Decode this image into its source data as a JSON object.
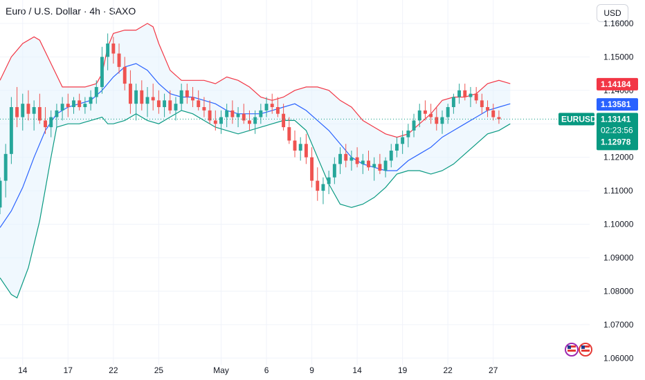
{
  "header": {
    "title": "Euro / U.S. Dollar · 4h · SAXO",
    "currency": "USD"
  },
  "colors": {
    "up": "#26a69a",
    "down": "#ef5350",
    "upper_band": "#f23645",
    "lower_band": "#089981",
    "basis": "#2962ff",
    "band_fill": "#e3f2fd"
  },
  "price_tags": {
    "upper": {
      "value": "1.14184",
      "color": "#f23645"
    },
    "basis": {
      "value": "1.13581",
      "color": "#2962ff"
    },
    "symbol": {
      "label": "EURUSD",
      "color": "#089981"
    },
    "last": {
      "value": "1.13141",
      "countdown": "02:23:56",
      "color": "#089981"
    },
    "lower": {
      "value": "1.12978",
      "color": "#089981"
    }
  },
  "chart_data": {
    "type": "line",
    "title": "Euro / U.S. Dollar · 4h · SAXO",
    "indicator": "Bollinger Bands",
    "x_ticks": [
      "14",
      "17",
      "22",
      "25",
      "May",
      "6",
      "9",
      "14",
      "19",
      "22",
      "27"
    ],
    "y_ticks": [
      "1.16000",
      "1.15000",
      "1.14000",
      "1.13000",
      "1.12000",
      "1.11000",
      "1.10000",
      "1.09000",
      "1.08000",
      "1.07000",
      "1.06000"
    ],
    "ylim": [
      1.058,
      1.167
    ],
    "xlim": [
      0,
      104
    ],
    "x_tick_positions": [
      4,
      12,
      20,
      28,
      39,
      47,
      55,
      63,
      71,
      79,
      87
    ],
    "upper_band": [
      [
        0,
        1.143
      ],
      [
        2,
        1.15
      ],
      [
        4,
        1.154
      ],
      [
        6,
        1.156
      ],
      [
        7,
        1.155
      ],
      [
        9,
        1.148
      ],
      [
        11,
        1.141
      ],
      [
        13,
        1.141
      ],
      [
        15,
        1.141
      ],
      [
        17,
        1.142
      ],
      [
        18,
        1.145
      ],
      [
        19,
        1.153
      ],
      [
        20,
        1.157
      ],
      [
        22,
        1.158
      ],
      [
        24,
        1.158
      ],
      [
        26,
        1.16
      ],
      [
        27,
        1.159
      ],
      [
        28,
        1.154
      ],
      [
        30,
        1.146
      ],
      [
        32,
        1.143
      ],
      [
        34,
        1.143
      ],
      [
        36,
        1.143
      ],
      [
        38,
        1.142
      ],
      [
        40,
        1.144
      ],
      [
        42,
        1.143
      ],
      [
        44,
        1.141
      ],
      [
        46,
        1.138
      ],
      [
        48,
        1.137
      ],
      [
        50,
        1.138
      ],
      [
        52,
        1.14
      ],
      [
        54,
        1.141
      ],
      [
        56,
        1.141
      ],
      [
        58,
        1.14
      ],
      [
        60,
        1.137
      ],
      [
        62,
        1.135
      ],
      [
        64,
        1.131
      ],
      [
        66,
        1.129
      ],
      [
        68,
        1.127
      ],
      [
        70,
        1.126
      ],
      [
        72,
        1.127
      ],
      [
        74,
        1.13
      ],
      [
        76,
        1.133
      ],
      [
        78,
        1.137
      ],
      [
        80,
        1.138
      ],
      [
        82,
        1.138
      ],
      [
        84,
        1.139
      ],
      [
        86,
        1.142
      ],
      [
        88,
        1.143
      ],
      [
        90,
        1.142
      ]
    ],
    "basis": [
      [
        0,
        1.099
      ],
      [
        2,
        1.104
      ],
      [
        4,
        1.111
      ],
      [
        6,
        1.12
      ],
      [
        8,
        1.128
      ],
      [
        10,
        1.133
      ],
      [
        12,
        1.135
      ],
      [
        14,
        1.136
      ],
      [
        16,
        1.137
      ],
      [
        18,
        1.14
      ],
      [
        20,
        1.144
      ],
      [
        22,
        1.147
      ],
      [
        24,
        1.148
      ],
      [
        26,
        1.146
      ],
      [
        28,
        1.142
      ],
      [
        30,
        1.139
      ],
      [
        32,
        1.138
      ],
      [
        34,
        1.138
      ],
      [
        36,
        1.137
      ],
      [
        38,
        1.136
      ],
      [
        40,
        1.134
      ],
      [
        42,
        1.133
      ],
      [
        44,
        1.133
      ],
      [
        46,
        1.133
      ],
      [
        48,
        1.134
      ],
      [
        50,
        1.135
      ],
      [
        52,
        1.136
      ],
      [
        54,
        1.134
      ],
      [
        56,
        1.131
      ],
      [
        58,
        1.128
      ],
      [
        60,
        1.124
      ],
      [
        62,
        1.12
      ],
      [
        64,
        1.118
      ],
      [
        66,
        1.117
      ],
      [
        68,
        1.116
      ],
      [
        70,
        1.116
      ],
      [
        72,
        1.119
      ],
      [
        74,
        1.121
      ],
      [
        76,
        1.123
      ],
      [
        78,
        1.126
      ],
      [
        80,
        1.128
      ],
      [
        82,
        1.13
      ],
      [
        84,
        1.132
      ],
      [
        86,
        1.134
      ],
      [
        88,
        1.135
      ],
      [
        90,
        1.136
      ]
    ],
    "lower_band": [
      [
        0,
        1.084
      ],
      [
        2,
        1.079
      ],
      [
        3,
        1.078
      ],
      [
        5,
        1.087
      ],
      [
        7,
        1.101
      ],
      [
        9,
        1.12
      ],
      [
        10,
        1.129
      ],
      [
        12,
        1.13
      ],
      [
        14,
        1.13
      ],
      [
        16,
        1.131
      ],
      [
        18,
        1.132
      ],
      [
        19,
        1.13
      ],
      [
        20,
        1.13
      ],
      [
        22,
        1.131
      ],
      [
        24,
        1.133
      ],
      [
        26,
        1.131
      ],
      [
        28,
        1.13
      ],
      [
        30,
        1.132
      ],
      [
        32,
        1.134
      ],
      [
        34,
        1.133
      ],
      [
        36,
        1.131
      ],
      [
        38,
        1.129
      ],
      [
        40,
        1.128
      ],
      [
        42,
        1.127
      ],
      [
        44,
        1.128
      ],
      [
        46,
        1.129
      ],
      [
        48,
        1.13
      ],
      [
        50,
        1.131
      ],
      [
        52,
        1.131
      ],
      [
        54,
        1.128
      ],
      [
        56,
        1.12
      ],
      [
        58,
        1.112
      ],
      [
        60,
        1.106
      ],
      [
        62,
        1.105
      ],
      [
        64,
        1.106
      ],
      [
        66,
        1.108
      ],
      [
        68,
        1.111
      ],
      [
        70,
        1.115
      ],
      [
        72,
        1.116
      ],
      [
        74,
        1.116
      ],
      [
        76,
        1.115
      ],
      [
        78,
        1.116
      ],
      [
        80,
        1.118
      ],
      [
        82,
        1.121
      ],
      [
        84,
        1.124
      ],
      [
        86,
        1.127
      ],
      [
        88,
        1.128
      ],
      [
        90,
        1.13
      ]
    ],
    "candles": [
      [
        0,
        1.105,
        1.114,
        1.103,
        1.113
      ],
      [
        1,
        1.113,
        1.124,
        1.108,
        1.121
      ],
      [
        2,
        1.121,
        1.138,
        1.118,
        1.135
      ],
      [
        3,
        1.135,
        1.141,
        1.129,
        1.132
      ],
      [
        4,
        1.132,
        1.139,
        1.128,
        1.136
      ],
      [
        5,
        1.136,
        1.14,
        1.131,
        1.133
      ],
      [
        6,
        1.133,
        1.137,
        1.128,
        1.135
      ],
      [
        7,
        1.135,
        1.139,
        1.13,
        1.131
      ],
      [
        8,
        1.131,
        1.135,
        1.127,
        1.129
      ],
      [
        9,
        1.129,
        1.134,
        1.126,
        1.132
      ],
      [
        10,
        1.132,
        1.136,
        1.129,
        1.134
      ],
      [
        11,
        1.134,
        1.138,
        1.131,
        1.136
      ],
      [
        12,
        1.136,
        1.139,
        1.132,
        1.135
      ],
      [
        13,
        1.135,
        1.138,
        1.133,
        1.137
      ],
      [
        14,
        1.137,
        1.139,
        1.134,
        1.135
      ],
      [
        15,
        1.135,
        1.138,
        1.133,
        1.136
      ],
      [
        16,
        1.136,
        1.14,
        1.134,
        1.138
      ],
      [
        17,
        1.138,
        1.143,
        1.136,
        1.141
      ],
      [
        18,
        1.141,
        1.153,
        1.139,
        1.15
      ],
      [
        19,
        1.15,
        1.157,
        1.146,
        1.154
      ],
      [
        20,
        1.154,
        1.156,
        1.148,
        1.151
      ],
      [
        21,
        1.151,
        1.154,
        1.145,
        1.147
      ],
      [
        22,
        1.147,
        1.15,
        1.14,
        1.142
      ],
      [
        23,
        1.142,
        1.146,
        1.133,
        1.136
      ],
      [
        24,
        1.136,
        1.142,
        1.131,
        1.14
      ],
      [
        25,
        1.14,
        1.143,
        1.134,
        1.136
      ],
      [
        26,
        1.136,
        1.141,
        1.132,
        1.138
      ],
      [
        27,
        1.138,
        1.142,
        1.134,
        1.137
      ],
      [
        28,
        1.137,
        1.14,
        1.133,
        1.135
      ],
      [
        29,
        1.135,
        1.139,
        1.132,
        1.137
      ],
      [
        30,
        1.137,
        1.14,
        1.133,
        1.134
      ],
      [
        31,
        1.134,
        1.138,
        1.131,
        1.136
      ],
      [
        32,
        1.136,
        1.142,
        1.134,
        1.14
      ],
      [
        33,
        1.14,
        1.142,
        1.136,
        1.138
      ],
      [
        34,
        1.138,
        1.141,
        1.135,
        1.137
      ],
      [
        35,
        1.137,
        1.14,
        1.134,
        1.135
      ],
      [
        36,
        1.135,
        1.138,
        1.132,
        1.134
      ],
      [
        37,
        1.134,
        1.137,
        1.13,
        1.131
      ],
      [
        38,
        1.131,
        1.134,
        1.128,
        1.13
      ],
      [
        39,
        1.13,
        1.134,
        1.127,
        1.132
      ],
      [
        40,
        1.132,
        1.136,
        1.129,
        1.134
      ],
      [
        41,
        1.134,
        1.137,
        1.13,
        1.132
      ],
      [
        42,
        1.132,
        1.135,
        1.129,
        1.133
      ],
      [
        43,
        1.133,
        1.136,
        1.13,
        1.131
      ],
      [
        44,
        1.131,
        1.134,
        1.128,
        1.13
      ],
      [
        45,
        1.13,
        1.134,
        1.127,
        1.132
      ],
      [
        46,
        1.132,
        1.136,
        1.13,
        1.134
      ],
      [
        47,
        1.134,
        1.138,
        1.132,
        1.136
      ],
      [
        48,
        1.136,
        1.139,
        1.133,
        1.135
      ],
      [
        49,
        1.135,
        1.138,
        1.132,
        1.133
      ],
      [
        50,
        1.133,
        1.136,
        1.128,
        1.129
      ],
      [
        51,
        1.129,
        1.132,
        1.124,
        1.125
      ],
      [
        52,
        1.125,
        1.128,
        1.12,
        1.122
      ],
      [
        53,
        1.122,
        1.126,
        1.119,
        1.124
      ],
      [
        54,
        1.124,
        1.127,
        1.118,
        1.12
      ],
      [
        55,
        1.12,
        1.123,
        1.111,
        1.113
      ],
      [
        56,
        1.113,
        1.117,
        1.107,
        1.11
      ],
      [
        57,
        1.11,
        1.114,
        1.106,
        1.112
      ],
      [
        58,
        1.112,
        1.116,
        1.109,
        1.114
      ],
      [
        59,
        1.114,
        1.12,
        1.112,
        1.118
      ],
      [
        60,
        1.118,
        1.123,
        1.115,
        1.121
      ],
      [
        61,
        1.121,
        1.124,
        1.117,
        1.119
      ],
      [
        62,
        1.119,
        1.122,
        1.116,
        1.12
      ],
      [
        63,
        1.12,
        1.123,
        1.117,
        1.118
      ],
      [
        64,
        1.118,
        1.121,
        1.115,
        1.119
      ],
      [
        65,
        1.119,
        1.122,
        1.116,
        1.117
      ],
      [
        66,
        1.117,
        1.12,
        1.113,
        1.118
      ],
      [
        67,
        1.118,
        1.121,
        1.115,
        1.116
      ],
      [
        68,
        1.116,
        1.12,
        1.114,
        1.119
      ],
      [
        69,
        1.119,
        1.124,
        1.117,
        1.122
      ],
      [
        70,
        1.122,
        1.126,
        1.12,
        1.124
      ],
      [
        71,
        1.124,
        1.128,
        1.121,
        1.126
      ],
      [
        72,
        1.126,
        1.13,
        1.123,
        1.128
      ],
      [
        73,
        1.128,
        1.133,
        1.126,
        1.131
      ],
      [
        74,
        1.131,
        1.136,
        1.129,
        1.134
      ],
      [
        75,
        1.134,
        1.137,
        1.131,
        1.133
      ],
      [
        76,
        1.133,
        1.136,
        1.13,
        1.132
      ],
      [
        77,
        1.132,
        1.135,
        1.128,
        1.13
      ],
      [
        78,
        1.13,
        1.134,
        1.127,
        1.132
      ],
      [
        79,
        1.132,
        1.136,
        1.13,
        1.135
      ],
      [
        80,
        1.135,
        1.139,
        1.133,
        1.138
      ],
      [
        81,
        1.138,
        1.142,
        1.136,
        1.14
      ],
      [
        82,
        1.14,
        1.142,
        1.137,
        1.138
      ],
      [
        83,
        1.138,
        1.141,
        1.135,
        1.139
      ],
      [
        84,
        1.139,
        1.141,
        1.136,
        1.137
      ],
      [
        85,
        1.137,
        1.139,
        1.133,
        1.135
      ],
      [
        86,
        1.135,
        1.137,
        1.132,
        1.134
      ],
      [
        87,
        1.134,
        1.136,
        1.131,
        1.132
      ],
      [
        88,
        1.132,
        1.134,
        1.13,
        1.1314
      ]
    ]
  }
}
